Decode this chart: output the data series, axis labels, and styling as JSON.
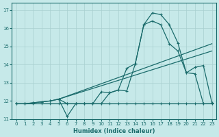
{
  "xlabel": "Humidex (Indice chaleur)",
  "bg_color": "#c6e9e9",
  "grid_color": "#a8d0d0",
  "line_color": "#1a6b6b",
  "xlim": [
    -0.5,
    23.5
  ],
  "ylim": [
    11.0,
    17.4
  ],
  "yticks": [
    11,
    12,
    13,
    14,
    15,
    16,
    17
  ],
  "xticks": [
    0,
    1,
    2,
    3,
    4,
    5,
    6,
    7,
    8,
    9,
    10,
    11,
    12,
    13,
    14,
    15,
    16,
    17,
    18,
    19,
    20,
    21,
    22,
    23
  ],
  "flat_x": [
    0,
    1,
    2,
    3,
    4,
    5,
    6,
    7,
    8,
    9,
    10,
    11,
    12,
    13,
    14,
    15,
    16,
    17,
    18,
    19,
    20,
    21,
    22,
    23
  ],
  "flat_y": [
    11.85,
    11.85,
    11.85,
    11.85,
    11.85,
    11.85,
    11.85,
    11.85,
    11.85,
    11.85,
    11.85,
    11.85,
    11.85,
    11.85,
    11.85,
    11.85,
    11.85,
    11.85,
    11.85,
    11.85,
    11.85,
    11.85,
    11.85,
    11.85
  ],
  "trend1_x": [
    5,
    23
  ],
  "trend1_y": [
    12.1,
    15.15
  ],
  "trend2_x": [
    5,
    23
  ],
  "trend2_y": [
    12.1,
    14.75
  ],
  "main_x": [
    0,
    1,
    2,
    3,
    4,
    5,
    6,
    7,
    8,
    9,
    10,
    11,
    12,
    13,
    14,
    15,
    16,
    17,
    18,
    19,
    20,
    21,
    22,
    23
  ],
  "main_y": [
    11.85,
    11.85,
    11.9,
    11.95,
    12.0,
    12.1,
    11.15,
    11.85,
    11.85,
    11.85,
    12.5,
    12.45,
    12.6,
    12.55,
    14.05,
    16.2,
    16.85,
    16.75,
    16.2,
    15.2,
    13.55,
    13.85,
    13.95,
    11.9
  ],
  "curve2_x": [
    0,
    1,
    2,
    3,
    4,
    5,
    6,
    7,
    8,
    9,
    10,
    11,
    12,
    13,
    14,
    15,
    16,
    17,
    18,
    19,
    20,
    21,
    22,
    23
  ],
  "curve2_y": [
    11.85,
    11.85,
    11.9,
    11.95,
    12.0,
    12.1,
    11.85,
    11.85,
    11.85,
    11.85,
    11.85,
    12.45,
    12.6,
    13.8,
    14.05,
    16.2,
    16.4,
    16.2,
    15.15,
    14.75,
    13.55,
    13.5,
    11.85,
    11.85
  ]
}
